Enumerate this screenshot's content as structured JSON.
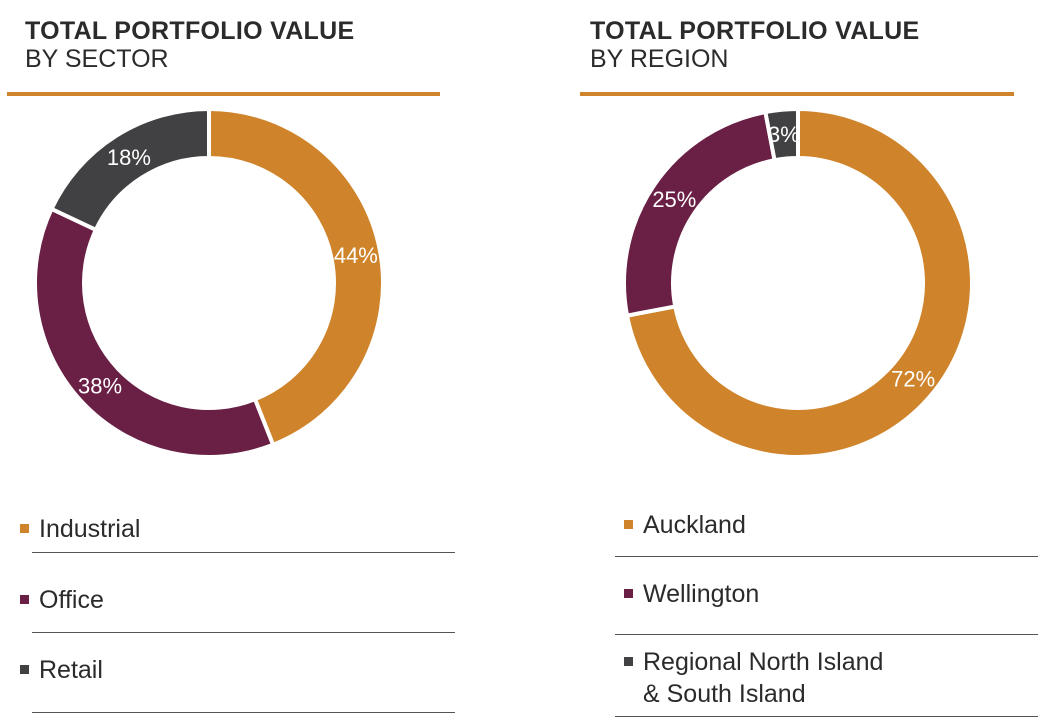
{
  "chart_data": [
    {
      "type": "pie",
      "title": "TOTAL PORTFOLIO VALUE",
      "subtitle": "BY SECTOR",
      "categories": [
        "Industrial",
        "Office",
        "Retail"
      ],
      "values": [
        44,
        38,
        18
      ],
      "data_labels": [
        "44%",
        "38%",
        "18%"
      ],
      "colors": [
        "#CF832A",
        "#6A1F45",
        "#414143"
      ],
      "legend": "bottom"
    },
    {
      "type": "pie",
      "title": "TOTAL PORTFOLIO VALUE",
      "subtitle": "BY REGION",
      "categories": [
        "Auckland",
        "Wellington",
        "Regional North Island & South Island"
      ],
      "values": [
        72,
        25,
        3
      ],
      "data_labels": [
        "72%",
        "25%",
        "3%"
      ],
      "colors": [
        "#CF832A",
        "#6A1F45",
        "#414143"
      ],
      "legend": "bottom"
    }
  ],
  "legend_lines": {
    "region_2_line1": "Regional North Island",
    "region_2_line2": "& South Island"
  }
}
